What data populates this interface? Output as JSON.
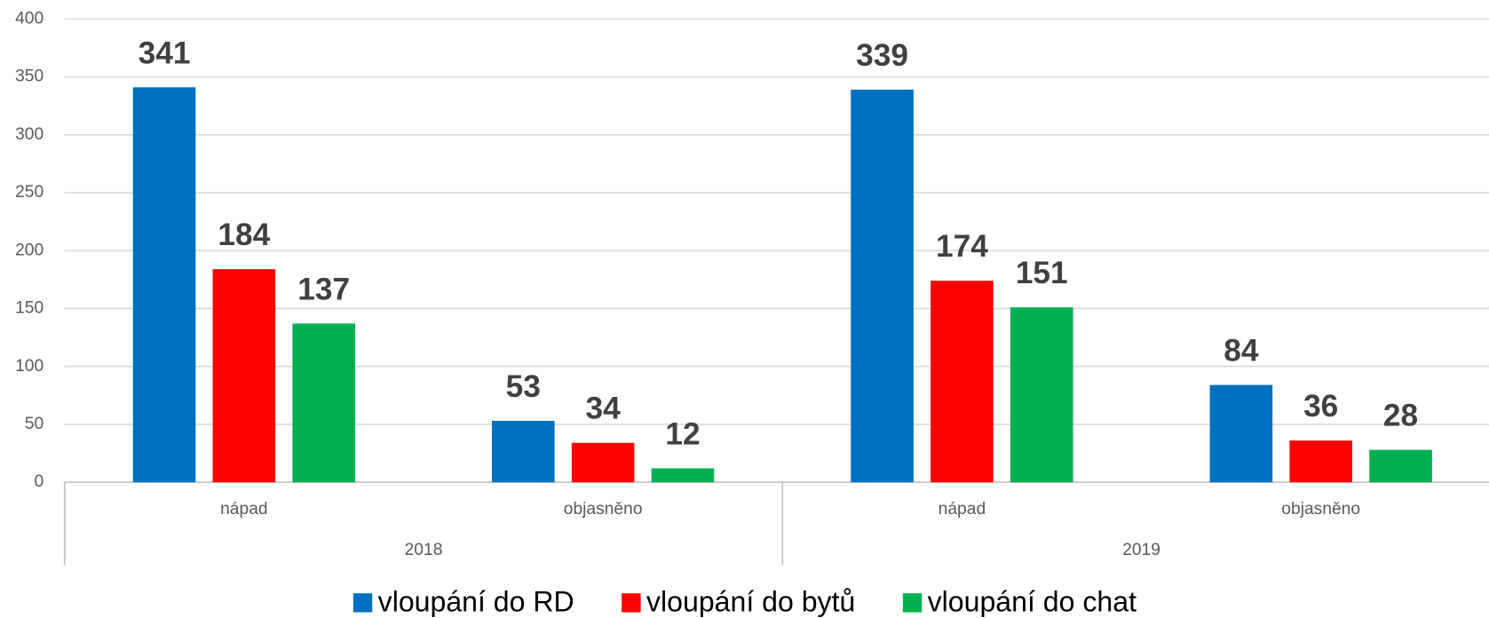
{
  "chart_data": {
    "type": "bar",
    "categories": [
      "nápad",
      "objasněno",
      "nápad",
      "objasněno"
    ],
    "category_groups": [
      "2018",
      "2019"
    ],
    "series": [
      {
        "name": "vloupání do RD",
        "color": "#0070c0",
        "values": [
          341,
          53,
          339,
          84
        ]
      },
      {
        "name": "vloupání do bytů",
        "color": "#ff0000",
        "values": [
          184,
          34,
          174,
          36
        ]
      },
      {
        "name": "vloupání do chat",
        "color": "#00b050",
        "values": [
          137,
          12,
          151,
          28
        ]
      }
    ],
    "ylim": [
      0,
      400
    ],
    "yticks": [
      0,
      50,
      100,
      150,
      200,
      250,
      300,
      350,
      400
    ],
    "grid": true,
    "legend": "bottom"
  }
}
